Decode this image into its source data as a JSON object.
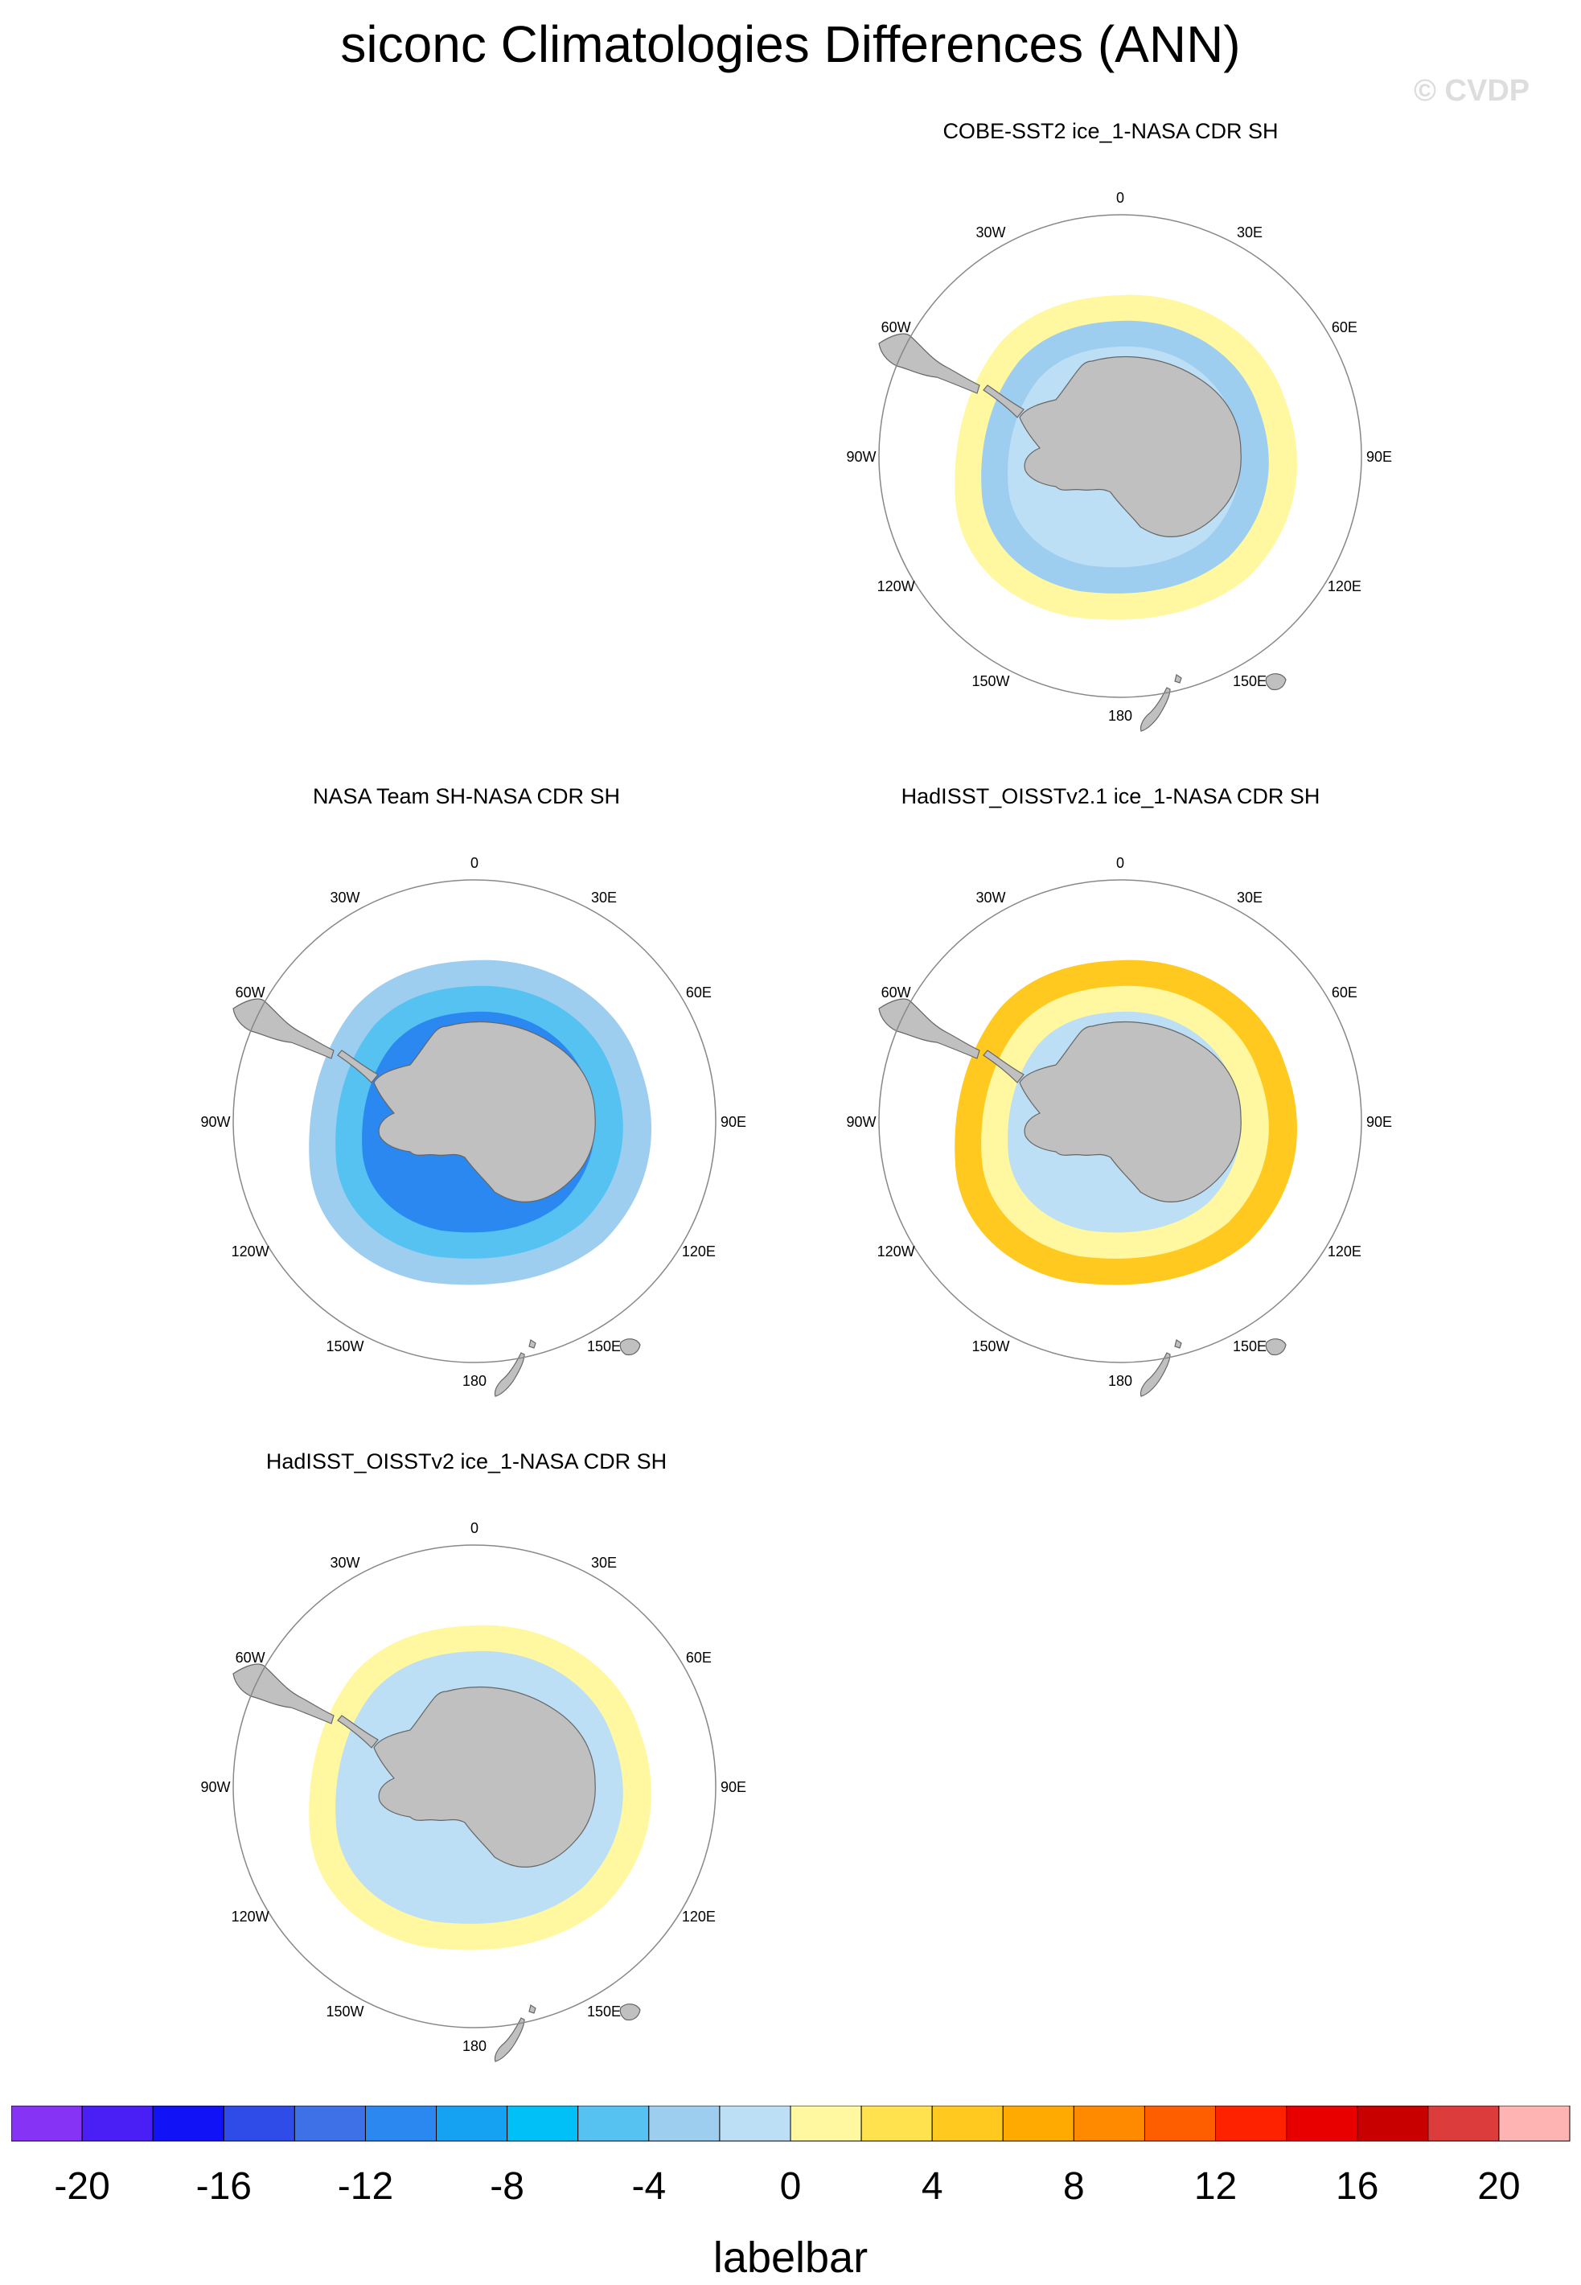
{
  "title": "siconc Climatologies Differences (ANN)",
  "watermark": "© CVDP",
  "colors": {
    "land": "#c0c0c0",
    "coast": "#666666",
    "ring": "#888888",
    "palette": [
      "#8733f5",
      "#4a1ff5",
      "#1212f7",
      "#2f4be8",
      "#3e71e8",
      "#2b88f0",
      "#16a2f2",
      "#00c0f7",
      "#55c2f2",
      "#9dcdef",
      "#bcdff5",
      "#fff8a0",
      "#ffe24d",
      "#ffc91f",
      "#ffaa00",
      "#ff8a00",
      "#ff5e00",
      "#ff2200",
      "#e80000",
      "#c80000",
      "#dc3c3c",
      "#ffb4b4"
    ]
  },
  "meridian_labels": [
    "0",
    "30E",
    "60E",
    "90E",
    "120E",
    "150E",
    "180",
    "150W",
    "120W",
    "90W",
    "60W",
    "30W"
  ],
  "panels": [
    {
      "id": "cobe",
      "title": "COBE-SST2 ice_1-NASA CDR SH",
      "rings": [
        {
          "value": 0,
          "color": "#fff8a0"
        },
        {
          "value": -4,
          "color": "#9dcdef"
        },
        {
          "value": -2,
          "color": "#bcdff5"
        }
      ]
    },
    {
      "id": "nasateam",
      "title": "NASA Team SH-NASA CDR SH",
      "rings": [
        {
          "value": -4,
          "color": "#9dcdef"
        },
        {
          "value": -8,
          "color": "#55c2f2"
        },
        {
          "value": -12,
          "color": "#2b88f0"
        }
      ]
    },
    {
      "id": "oisstv21",
      "title": "HadISST_OISSTv2.1 ice_1-NASA CDR SH",
      "rings": [
        {
          "value": 6,
          "color": "#ffc91f"
        },
        {
          "value": 2,
          "color": "#fff8a0"
        },
        {
          "value": -2,
          "color": "#bcdff5"
        }
      ]
    },
    {
      "id": "oisstv2",
      "title": "HadISST_OISSTv2 ice_1-NASA CDR SH",
      "rings": [
        {
          "value": 2,
          "color": "#fff8a0"
        },
        {
          "value": -2,
          "color": "#bcdff5"
        },
        {
          "value": -2,
          "color": "#bcdff5"
        }
      ]
    }
  ],
  "labelbar": {
    "title": "labelbar",
    "ticks": [
      "-20",
      "-16",
      "-12",
      "-8",
      "-4",
      "0",
      "4",
      "8",
      "12",
      "16",
      "20"
    ]
  }
}
